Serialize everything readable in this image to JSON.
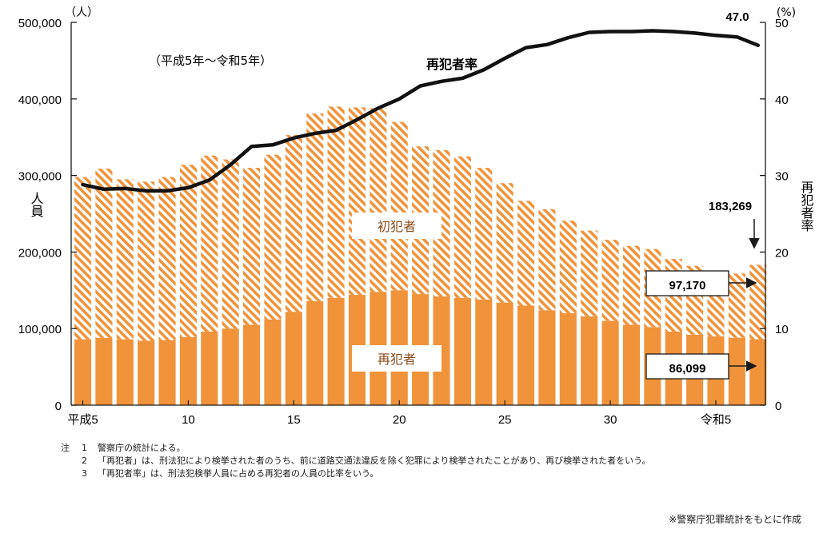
{
  "chart_data": {
    "type": "bar",
    "stacked": true,
    "period_label": "（平成5年～令和5年）",
    "left_axis": {
      "unit": "（人）",
      "label": "人員",
      "ticks": [
        "0",
        "100,000",
        "200,000",
        "300,000",
        "400,000",
        "500,000"
      ],
      "ylim": [
        0,
        500000
      ]
    },
    "right_axis": {
      "unit": "(%)",
      "label": "再犯者率",
      "ticks": [
        "0",
        "10",
        "20",
        "30",
        "40",
        "50"
      ],
      "ylim": [
        0,
        50
      ]
    },
    "x_tick_labels": [
      {
        "index": 0,
        "label": "平成5"
      },
      {
        "index": 5,
        "label": "10"
      },
      {
        "index": 10,
        "label": "15"
      },
      {
        "index": 15,
        "label": "20"
      },
      {
        "index": 20,
        "label": "25"
      },
      {
        "index": 25,
        "label": "30"
      },
      {
        "index": 30,
        "label": "令和5"
      }
    ],
    "series": [
      {
        "name": "再犯者",
        "color": "#f0933a",
        "values": [
          86000,
          88000,
          86000,
          84000,
          85000,
          89000,
          96000,
          100000,
          105000,
          112000,
          122000,
          136000,
          140000,
          144000,
          148000,
          150000,
          145000,
          142000,
          140000,
          138000,
          134000,
          130000,
          124000,
          120000,
          116000,
          110000,
          105000,
          102000,
          96000,
          92000,
          90000,
          88000,
          86099
        ]
      },
      {
        "name": "初犯者",
        "color": "#f0933a",
        "pattern": "hatch",
        "values": [
          212000,
          221000,
          209000,
          208000,
          213000,
          225000,
          230000,
          221000,
          205000,
          215000,
          231000,
          245000,
          250000,
          245000,
          240000,
          220000,
          193000,
          191000,
          185000,
          172000,
          156000,
          137000,
          132000,
          121000,
          112000,
          106000,
          103000,
          102000,
          95000,
          90000,
          82000,
          84000,
          97170
        ]
      },
      {
        "name": "再犯者率",
        "type": "line",
        "axis": "right",
        "color": "#111111",
        "values": [
          28.8,
          28.2,
          28.3,
          28.0,
          28.0,
          28.4,
          29.4,
          31.4,
          33.8,
          34.0,
          34.9,
          35.5,
          35.9,
          37.3,
          38.8,
          40.0,
          41.7,
          42.3,
          42.7,
          43.8,
          45.3,
          46.7,
          47.1,
          48.0,
          48.7,
          48.8,
          48.8,
          48.9,
          48.8,
          48.6,
          48.3,
          48.1,
          47.0
        ]
      }
    ],
    "annotations": {
      "rate_last": "47.0",
      "total_last": "183,269",
      "first_offender_last": "97,170",
      "repeat_offender_last": "86,099",
      "first_offender_label": "初犯者",
      "repeat_offender_label": "再犯者",
      "rate_label": "再犯者率"
    }
  },
  "notes": {
    "lead": "注",
    "items": [
      {
        "num": "1",
        "text": "警察庁の統計による。"
      },
      {
        "num": "2",
        "text": "「再犯者」は、刑法犯により検挙された者のうち、前に道路交通法違反を除く犯罪により検挙されたことがあり、再び検挙された者をいう。"
      },
      {
        "num": "3",
        "text": "「再犯者率」は、刑法犯検挙人員に占める再犯者の人員の比率をいう。"
      }
    ]
  },
  "source": "※警察庁犯罪統計をもとに作成"
}
